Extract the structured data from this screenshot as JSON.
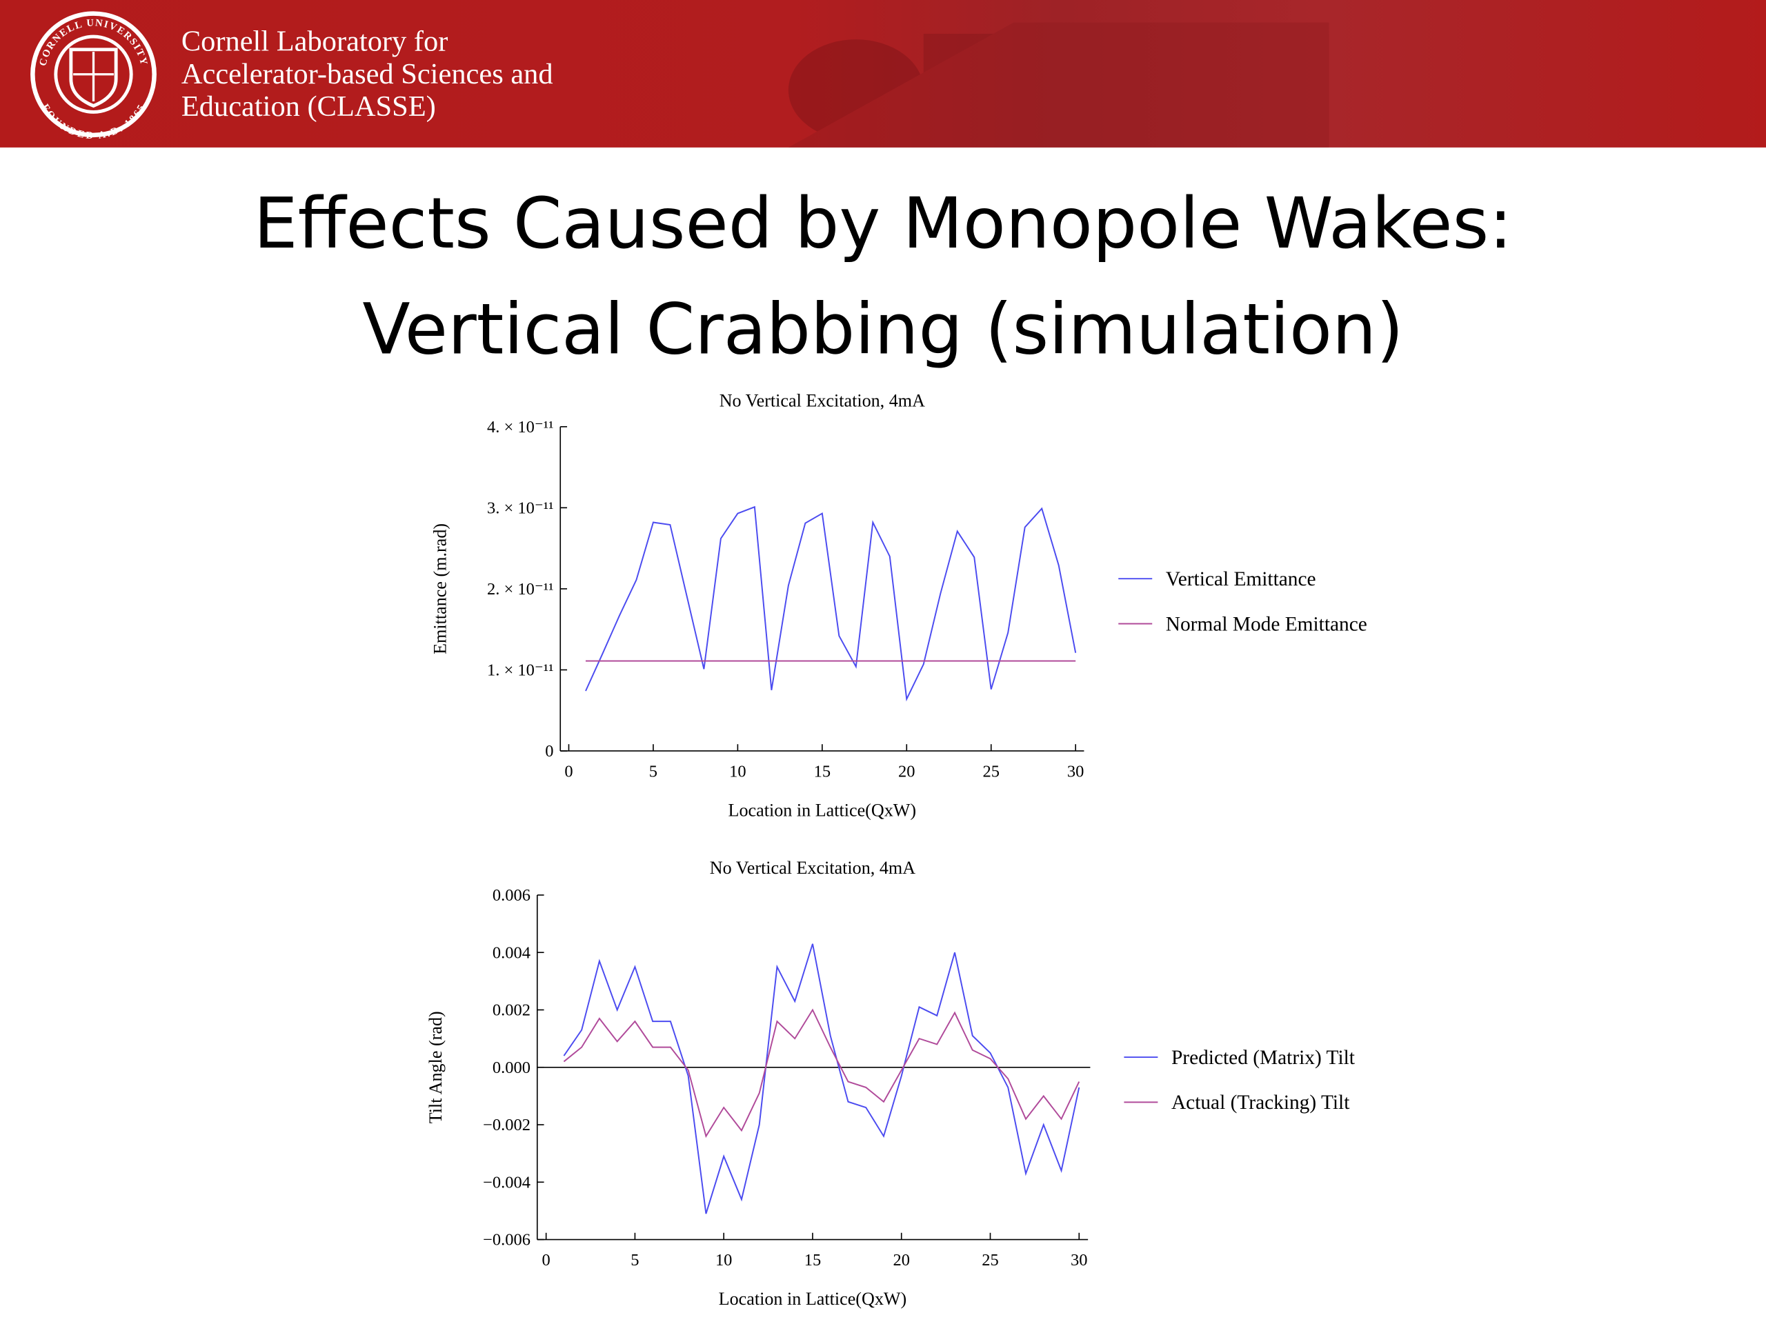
{
  "header": {
    "logo_top": "CORNELL UNIVERSITY",
    "logo_bottom": "FOUNDED A.D. 1865",
    "lines": [
      "Cornell Laboratory for",
      "Accelerator-based Sciences and",
      "Education (CLASSE)"
    ]
  },
  "slide_title": [
    "Effects Caused by Monopole Wakes:",
    "Vertical Crabbing (simulation)"
  ],
  "chart_data": [
    {
      "type": "line",
      "title": "No Vertical Excitation, 4mA",
      "x_label": "Location in Lattice(QxW)",
      "y_label": "Emittance (m.rad)",
      "x": [
        1,
        2,
        3,
        4,
        5,
        6,
        7,
        8,
        9,
        10,
        11,
        12,
        13,
        14,
        15,
        16,
        17,
        18,
        19,
        20,
        21,
        22,
        23,
        24,
        25,
        26,
        27,
        28,
        29,
        30
      ],
      "series": [
        {
          "name": "Vertical Emittance",
          "color": "#4b4bf0",
          "values": [
            7.4e-12,
            1.2e-11,
            1.67e-11,
            2.11e-11,
            2.82e-11,
            2.79e-11,
            1.9e-11,
            1.01e-11,
            2.62e-11,
            2.93e-11,
            3.01e-11,
            7.5e-12,
            2.04e-11,
            2.81e-11,
            2.93e-11,
            1.42e-11,
            1.04e-11,
            2.82e-11,
            2.4e-11,
            6.4e-12,
            1.07e-11,
            1.94e-11,
            2.71e-11,
            2.39e-11,
            7.6e-12,
            1.46e-11,
            2.76e-11,
            2.99e-11,
            2.29e-11,
            1.21e-11
          ]
        },
        {
          "name": "Normal Mode Emittance",
          "color": "#b04a9a",
          "values": [
            1.11e-11,
            1.11e-11,
            1.11e-11,
            1.11e-11,
            1.11e-11,
            1.11e-11,
            1.11e-11,
            1.11e-11,
            1.11e-11,
            1.11e-11,
            1.11e-11,
            1.11e-11,
            1.11e-11,
            1.11e-11,
            1.11e-11,
            1.11e-11,
            1.11e-11,
            1.11e-11,
            1.11e-11,
            1.11e-11,
            1.11e-11,
            1.11e-11,
            1.11e-11,
            1.11e-11,
            1.11e-11,
            1.11e-11,
            1.11e-11,
            1.11e-11,
            1.11e-11,
            1.11e-11
          ]
        }
      ],
      "xlim": [
        -0.5,
        30.5
      ],
      "xticks": [
        0,
        5,
        10,
        15,
        20,
        25,
        30
      ],
      "ylim": [
        0,
        4e-11
      ],
      "yticks": [
        0,
        {
          "value": 1e-11,
          "label": "1. × 10⁻¹¹"
        },
        {
          "value": 2e-11,
          "label": "2. × 10⁻¹¹"
        },
        {
          "value": 3e-11,
          "label": "3. × 10⁻¹¹"
        },
        {
          "value": 4e-11,
          "label": "4. × 10⁻¹¹"
        }
      ],
      "legend": "right",
      "zero_line": false
    },
    {
      "type": "line",
      "title": "No Vertical Excitation, 4mA",
      "x_label": "Location in Lattice(QxW)",
      "y_label": "Tilt Angle (rad)",
      "x": [
        1,
        2,
        3,
        4,
        5,
        6,
        7,
        8,
        9,
        10,
        11,
        12,
        13,
        14,
        15,
        16,
        17,
        18,
        19,
        20,
        21,
        22,
        23,
        24,
        25,
        26,
        27,
        28,
        29,
        30
      ],
      "series": [
        {
          "name": "Predicted (Matrix) Tilt",
          "color": "#4b4bf0",
          "values": [
            0.0004,
            0.0013,
            0.0037,
            0.002,
            0.0035,
            0.0016,
            0.0016,
            -0.0003,
            -0.0051,
            -0.0031,
            -0.0046,
            -0.002,
            0.0035,
            0.0023,
            0.0043,
            0.0011,
            -0.0012,
            -0.0014,
            -0.0024,
            -0.0003,
            0.0021,
            0.0018,
            0.004,
            0.0011,
            0.0005,
            -0.0007,
            -0.0037,
            -0.002,
            -0.0036,
            -0.0007
          ]
        },
        {
          "name": "Actual (Tracking) Tilt",
          "color": "#b04a9a",
          "values": [
            0.0002,
            0.0007,
            0.0017,
            0.0009,
            0.0016,
            0.0007,
            0.0007,
            -0.0001,
            -0.0024,
            -0.0014,
            -0.0022,
            -0.0009,
            0.0016,
            0.001,
            0.002,
            0.0007,
            -0.0005,
            -0.0007,
            -0.0012,
            -0.0001,
            0.001,
            0.0008,
            0.0019,
            0.0006,
            0.0003,
            -0.0004,
            -0.0018,
            -0.001,
            -0.0018,
            -0.0005
          ]
        }
      ],
      "xlim": [
        -0.5,
        30.5
      ],
      "xticks": [
        0,
        5,
        10,
        15,
        20,
        25,
        30
      ],
      "ylim": [
        -0.006,
        0.006
      ],
      "yticks": [
        {
          "value": -0.006,
          "label": "−0.006"
        },
        {
          "value": -0.004,
          "label": "−0.004"
        },
        {
          "value": -0.002,
          "label": "−0.002"
        },
        {
          "value": 0,
          "label": "0.000"
        },
        0.002,
        0.004,
        0.006
      ],
      "legend": "right",
      "zero_line": true
    }
  ]
}
